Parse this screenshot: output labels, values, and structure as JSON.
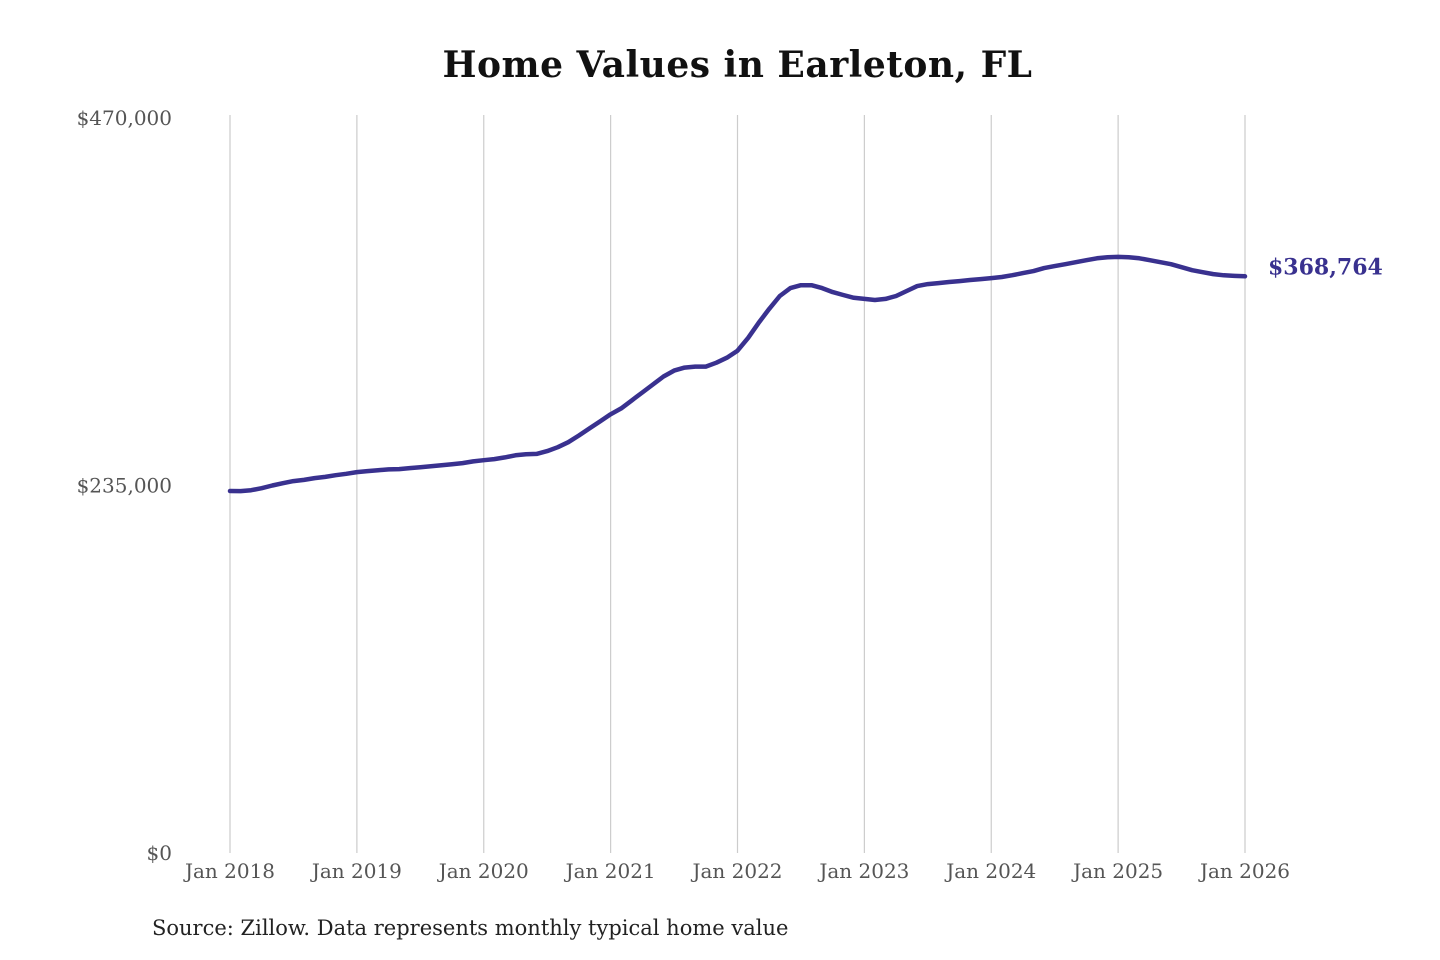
{
  "chart": {
    "title": "Home Values in Earleton, FL",
    "source_note": "Source: Zillow. Data represents monthly typical home value"
  },
  "chart_data": {
    "type": "line",
    "title": "Home Values in Earleton, FL",
    "frequency": "monthly",
    "x_start": "Jan 2018",
    "x_end": "Jan 2026",
    "x_tick_interval": 12,
    "x_tick_labels": [
      "Jan 2018",
      "Jan 2019",
      "Jan 2020",
      "Jan 2021",
      "Jan 2022",
      "Jan 2023",
      "Jan 2024",
      "Jan 2025",
      "Jan 2026"
    ],
    "ylim": [
      0,
      470000
    ],
    "y_ticks": [
      {
        "value": 470000,
        "label": "$470,000"
      },
      {
        "value": 235000,
        "label": "$235,000"
      },
      {
        "value": 0,
        "label": "$0"
      }
    ],
    "grid": "vertical-only",
    "legend": false,
    "end_label": "$368,764",
    "final_value": 368764,
    "line_color": "#39318f",
    "grid_color": "#cccccc",
    "tick_label_color": "#555555",
    "series": [
      {
        "name": "Typical home value",
        "values": [
          231500,
          231400,
          232000,
          233300,
          235000,
          236500,
          237800,
          238600,
          239700,
          240500,
          241600,
          242500,
          243600,
          244200,
          244800,
          245300,
          245500,
          246100,
          246700,
          247300,
          248000,
          248600,
          249300,
          250400,
          251200,
          251900,
          253000,
          254300,
          255000,
          255200,
          257000,
          259500,
          262700,
          267000,
          271500,
          276000,
          280500,
          284300,
          289400,
          294500,
          299600,
          304700,
          308500,
          310400,
          311000,
          311000,
          313500,
          316700,
          321200,
          329400,
          339000,
          347900,
          356200,
          361200,
          363100,
          363100,
          361200,
          358700,
          356800,
          355000,
          354300,
          353600,
          354300,
          356200,
          359400,
          362500,
          363800,
          364400,
          365100,
          365700,
          366400,
          367000,
          367600,
          368300,
          369500,
          370800,
          372100,
          374000,
          375300,
          376500,
          377800,
          379100,
          380300,
          381000,
          381200,
          381000,
          380300,
          379100,
          377800,
          376500,
          374600,
          372700,
          371400,
          370200,
          369400,
          369000,
          368764
        ]
      }
    ]
  }
}
